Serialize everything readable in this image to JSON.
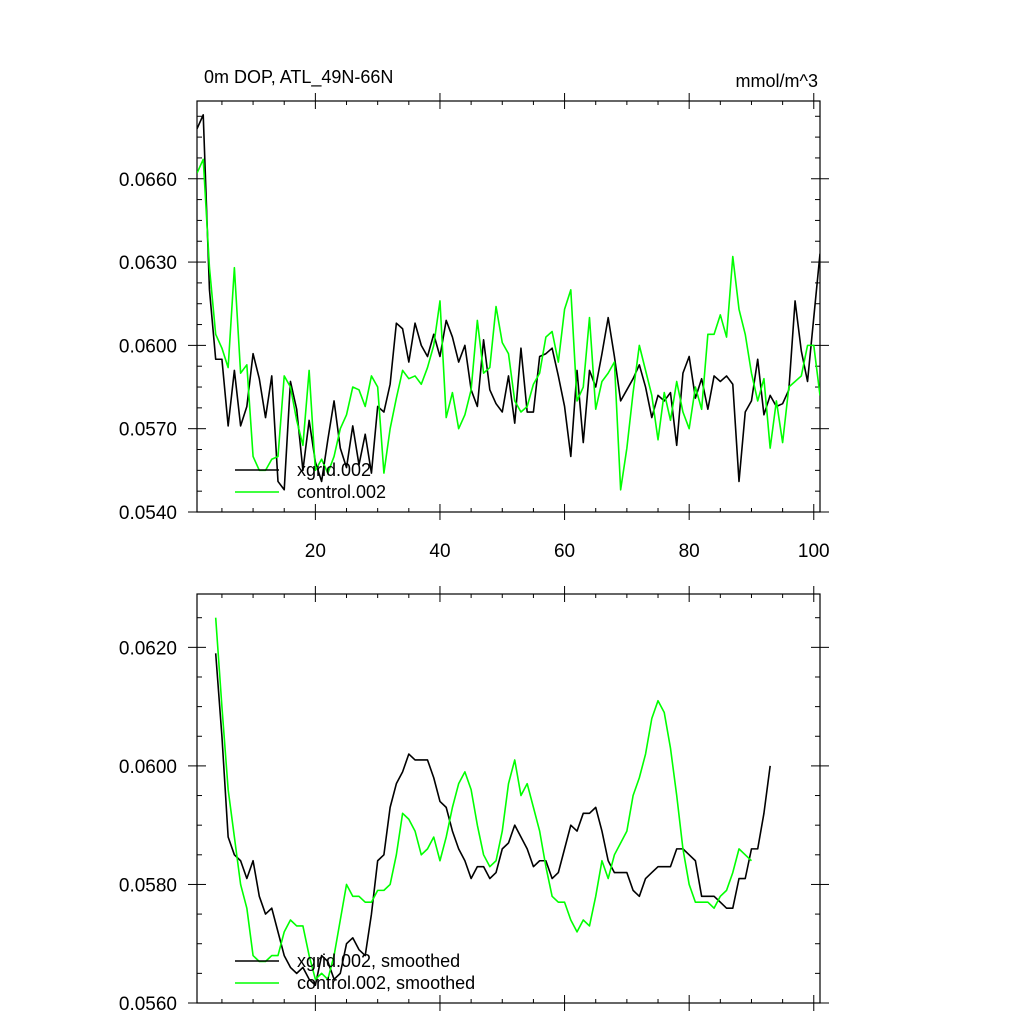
{
  "chart_data": [
    {
      "type": "line",
      "title": "0m DOP, ATL_49N-66N",
      "units": "mmol/m^3",
      "xlim": [
        1,
        101
      ],
      "ylim": [
        0.054,
        0.0688
      ],
      "xticks": [
        20,
        40,
        60,
        80,
        100
      ],
      "yticks": [
        0.054,
        0.057,
        0.06,
        0.063,
        0.066
      ],
      "ytick_labels": [
        "0.0540",
        "0.0570",
        "0.0600",
        "0.0630",
        "0.0660"
      ],
      "x_start": 1,
      "legend": {
        "placement": "bottom-left"
      },
      "series": [
        {
          "name": "xgrid.002",
          "color": "#000000",
          "values": [
            0.0678,
            0.0683,
            0.062,
            0.0595,
            0.0595,
            0.0571,
            0.0591,
            0.0571,
            0.0578,
            0.0597,
            0.0588,
            0.0574,
            0.0589,
            0.0551,
            0.0548,
            0.0587,
            0.0577,
            0.0555,
            0.0573,
            0.0558,
            0.0551,
            0.0566,
            0.058,
            0.0563,
            0.0556,
            0.0571,
            0.0557,
            0.0568,
            0.0554,
            0.0578,
            0.0576,
            0.0586,
            0.0608,
            0.0606,
            0.0594,
            0.0608,
            0.06,
            0.0596,
            0.0604,
            0.0596,
            0.0609,
            0.0603,
            0.0594,
            0.06,
            0.0584,
            0.0578,
            0.0602,
            0.0584,
            0.0579,
            0.0576,
            0.0589,
            0.0572,
            0.0599,
            0.0576,
            0.0576,
            0.0596,
            0.0597,
            0.0599,
            0.0589,
            0.0578,
            0.056,
            0.0591,
            0.0565,
            0.0591,
            0.0585,
            0.0597,
            0.061,
            0.0596,
            0.058,
            0.0584,
            0.0588,
            0.0593,
            0.0585,
            0.0574,
            0.0582,
            0.058,
            0.0583,
            0.0564,
            0.059,
            0.0596,
            0.0581,
            0.0588,
            0.0577,
            0.0589,
            0.0587,
            0.0589,
            0.0586,
            0.0551,
            0.0576,
            0.058,
            0.0595,
            0.0575,
            0.0582,
            0.0578,
            0.0579,
            0.0584,
            0.0616,
            0.0598,
            0.0587,
            0.061,
            0.0633
          ]
        },
        {
          "name": "control.002",
          "color": "#00ff00",
          "values": [
            0.0662,
            0.0667,
            0.0628,
            0.0604,
            0.0599,
            0.0592,
            0.0628,
            0.059,
            0.0593,
            0.056,
            0.0555,
            0.0555,
            0.0559,
            0.056,
            0.0589,
            0.0585,
            0.0573,
            0.0564,
            0.0591,
            0.0555,
            0.0559,
            0.0554,
            0.056,
            0.057,
            0.0575,
            0.0585,
            0.0584,
            0.0578,
            0.0589,
            0.0585,
            0.0554,
            0.057,
            0.0581,
            0.0591,
            0.0588,
            0.0589,
            0.0586,
            0.0592,
            0.06,
            0.0616,
            0.0574,
            0.0583,
            0.057,
            0.0575,
            0.0584,
            0.0609,
            0.059,
            0.0592,
            0.0614,
            0.0601,
            0.0597,
            0.058,
            0.0576,
            0.0578,
            0.0586,
            0.059,
            0.0603,
            0.0605,
            0.0594,
            0.0613,
            0.062,
            0.058,
            0.0585,
            0.061,
            0.0577,
            0.0587,
            0.059,
            0.0594,
            0.0548,
            0.0563,
            0.0583,
            0.06,
            0.0591,
            0.0582,
            0.0566,
            0.0583,
            0.0573,
            0.0587,
            0.0576,
            0.057,
            0.0585,
            0.0577,
            0.0604,
            0.0604,
            0.0611,
            0.0603,
            0.0632,
            0.0613,
            0.0604,
            0.059,
            0.058,
            0.0588,
            0.0563,
            0.058,
            0.0565,
            0.0585,
            0.0587,
            0.0589,
            0.06,
            0.06,
            0.0582
          ]
        }
      ]
    },
    {
      "type": "line",
      "xlim": [
        1,
        101
      ],
      "ylim": [
        0.056,
        0.0629
      ],
      "xticks": [
        20,
        40,
        60,
        80,
        100
      ],
      "xtick_labels_shown": false,
      "yticks": [
        0.056,
        0.058,
        0.06,
        0.062
      ],
      "ytick_labels": [
        "0.0560",
        "0.0580",
        "0.0600",
        "0.0620"
      ],
      "x_start": 4,
      "legend": {
        "placement": "bottom-left"
      },
      "series": [
        {
          "name": "xgrid.002, smoothed",
          "color": "#000000",
          "values": [
            0.0619,
            0.0605,
            0.0588,
            0.0585,
            0.0584,
            0.0581,
            0.0584,
            0.0578,
            0.0575,
            0.0576,
            0.0572,
            0.0568,
            0.0566,
            0.0565,
            0.0566,
            0.0564,
            0.0563,
            0.0568,
            0.0567,
            0.0564,
            0.0565,
            0.057,
            0.0571,
            0.0569,
            0.0568,
            0.0575,
            0.0584,
            0.0585,
            0.0593,
            0.0597,
            0.0599,
            0.0602,
            0.0601,
            0.0601,
            0.0601,
            0.0598,
            0.0594,
            0.0593,
            0.0589,
            0.0586,
            0.0584,
            0.0581,
            0.0583,
            0.0583,
            0.0581,
            0.0582,
            0.0586,
            0.0587,
            0.059,
            0.0588,
            0.0586,
            0.0583,
            0.0584,
            0.0584,
            0.0581,
            0.0582,
            0.0586,
            0.059,
            0.0589,
            0.0592,
            0.0592,
            0.0593,
            0.0589,
            0.0584,
            0.0582,
            0.0582,
            0.0582,
            0.0579,
            0.0578,
            0.0581,
            0.0582,
            0.0583,
            0.0583,
            0.0583,
            0.0586,
            0.0586,
            0.0585,
            0.0584,
            0.0578,
            0.0578,
            0.0578,
            0.0577,
            0.0576,
            0.0576,
            0.0581,
            0.0581,
            0.0586,
            0.0586,
            0.0592,
            0.06
          ]
        },
        {
          "name": "control.002, smoothed",
          "color": "#00ff00",
          "values": [
            0.0625,
            0.061,
            0.0596,
            0.0588,
            0.058,
            0.0576,
            0.0568,
            0.0567,
            0.0567,
            0.0568,
            0.0568,
            0.0572,
            0.0574,
            0.0573,
            0.0573,
            0.0568,
            0.0564,
            0.0565,
            0.0564,
            0.0568,
            0.0574,
            0.058,
            0.0578,
            0.0578,
            0.0577,
            0.0577,
            0.0579,
            0.0579,
            0.058,
            0.0585,
            0.0592,
            0.0591,
            0.0589,
            0.0585,
            0.0586,
            0.0588,
            0.0584,
            0.0588,
            0.0593,
            0.0597,
            0.0599,
            0.0596,
            0.059,
            0.0585,
            0.0583,
            0.0584,
            0.0589,
            0.0597,
            0.0601,
            0.0595,
            0.0597,
            0.0593,
            0.0589,
            0.0583,
            0.0578,
            0.0577,
            0.0577,
            0.0574,
            0.0572,
            0.0574,
            0.0573,
            0.0578,
            0.0584,
            0.0581,
            0.0585,
            0.0587,
            0.0589,
            0.0595,
            0.0598,
            0.0602,
            0.0608,
            0.0611,
            0.0609,
            0.0603,
            0.0595,
            0.0586,
            0.058,
            0.0577,
            0.0577,
            0.0577,
            0.0576,
            0.0578,
            0.0579,
            0.0582,
            0.0586,
            0.0585,
            0.0584
          ]
        }
      ]
    }
  ]
}
